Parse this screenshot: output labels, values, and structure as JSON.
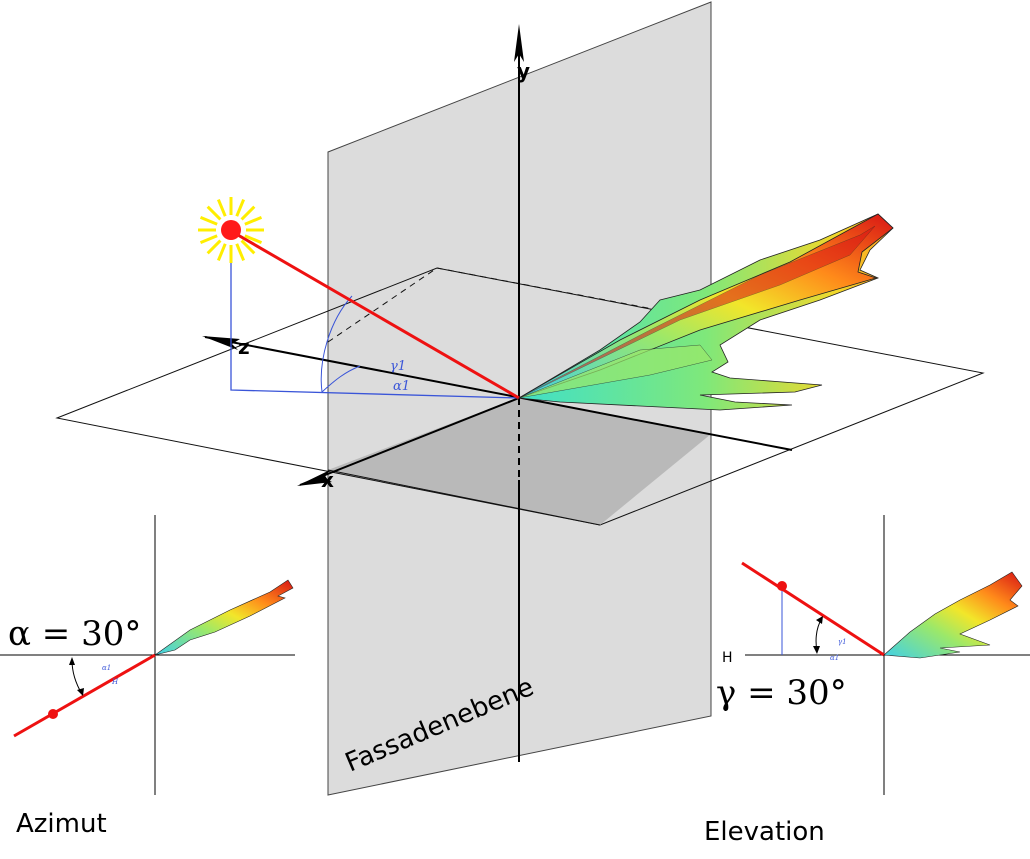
{
  "labels": {
    "y_axis": "y",
    "z_axis": "z",
    "x_axis": "x",
    "gamma_small": "γ1",
    "alpha_small": "α1",
    "facade": "Fassadenebene",
    "azimut_eq": "α = 30°",
    "elevation_eq": "γ = 30°",
    "azimut_title": "Azimut",
    "elevation_title": "Elevation",
    "horizon": "H",
    "alpha_tiny": "α1",
    "h_tiny": "H",
    "gamma_tiny": "γ1"
  },
  "colors": {
    "sun": "#ff1a1a",
    "sun_rays": "#ffee00",
    "ray": "#ee1111",
    "guide": "#3a55d8",
    "facade": "#dcdcdc",
    "ground_shadow": "#b9b9b9"
  },
  "angles": {
    "azimut_deg": 30,
    "elevation_deg": 30
  }
}
